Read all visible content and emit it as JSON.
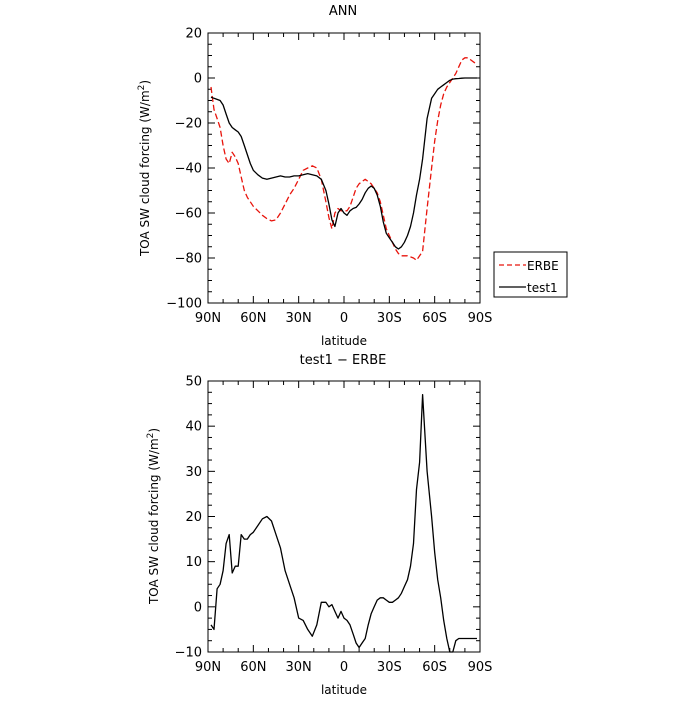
{
  "chart_data": [
    {
      "type": "line",
      "title": "ANN",
      "xlabel": "latitude",
      "ylabel": "TOA SW cloud forcing (W/m",
      "ylabel_sup": "2",
      "ylabel_end": ")",
      "xlim": [
        90,
        -90
      ],
      "ylim": [
        -100,
        20
      ],
      "xticks": [
        90,
        60,
        30,
        0,
        -30,
        -60,
        -90
      ],
      "xtick_labels": [
        "90N",
        "60N",
        "30N",
        "0",
        "30S",
        "60S",
        "90S"
      ],
      "yticks": [
        -100,
        -80,
        -60,
        -40,
        -20,
        0,
        20
      ],
      "ytick_labels": [
        "−100",
        "−80",
        "−60",
        "−40",
        "−20",
        "0",
        "20"
      ],
      "legend": "outside-right",
      "series": [
        {
          "name": "ERBE",
          "color": "#e8140c",
          "dash": "dashed",
          "x": [
            88,
            86,
            84,
            82,
            80,
            78,
            76,
            74,
            72,
            70,
            68,
            66,
            64,
            62,
            60,
            57,
            54,
            51,
            48,
            45,
            42,
            39,
            36,
            33,
            30,
            27,
            24,
            21,
            18,
            15,
            12,
            10,
            8,
            6,
            4,
            2,
            0,
            -2,
            -4,
            -6,
            -8,
            -10,
            -12,
            -14,
            -16,
            -18,
            -20,
            -22,
            -24,
            -26,
            -28,
            -30,
            -32,
            -34,
            -36,
            -38,
            -40,
            -42,
            -44,
            -46,
            -48,
            -50,
            -52,
            -55,
            -58,
            -60,
            -62,
            -64,
            -66,
            -68,
            -70,
            -72,
            -74,
            -76,
            -78,
            -80,
            -82,
            -84,
            -86,
            -88
          ],
          "y": [
            -4,
            -14,
            -18,
            -22,
            -30,
            -36,
            -38,
            -33,
            -35,
            -38,
            -44,
            -50,
            -53,
            -55,
            -57,
            -59,
            -61,
            -62.5,
            -63.5,
            -63,
            -60,
            -56,
            -52,
            -49,
            -45,
            -41,
            -40,
            -39,
            -40,
            -45,
            -55,
            -62,
            -67,
            -60,
            -58,
            -59,
            -59,
            -59,
            -57,
            -53,
            -49,
            -47,
            -46,
            -45,
            -46,
            -47,
            -49,
            -51,
            -55,
            -61,
            -67,
            -70,
            -73,
            -76,
            -78,
            -79,
            -79,
            -79,
            -79.5,
            -80,
            -81,
            -79,
            -77,
            -58,
            -40,
            -28,
            -19,
            -12,
            -7,
            -4,
            -2,
            0,
            2,
            5,
            8,
            9,
            9,
            8,
            7,
            6
          ]
        },
        {
          "name": "test1",
          "color": "#000000",
          "dash": "solid",
          "x": [
            88,
            86,
            84,
            82,
            80,
            78,
            76,
            74,
            72,
            70,
            68,
            66,
            64,
            62,
            60,
            57,
            54,
            51,
            48,
            45,
            42,
            39,
            36,
            33,
            30,
            27,
            24,
            21,
            18,
            15,
            12,
            10,
            8,
            6,
            4,
            2,
            0,
            -2,
            -4,
            -6,
            -8,
            -10,
            -12,
            -14,
            -16,
            -18,
            -20,
            -22,
            -24,
            -26,
            -28,
            -30,
            -32,
            -34,
            -36,
            -38,
            -40,
            -42,
            -44,
            -46,
            -48,
            -50,
            -52,
            -55,
            -58,
            -60,
            -62,
            -64,
            -66,
            -68,
            -70,
            -72,
            -74,
            -76,
            -78,
            -80,
            -82,
            -84,
            -86,
            -88
          ],
          "y": [
            -8.5,
            -9,
            -9.5,
            -10,
            -12,
            -16,
            -20,
            -22,
            -23,
            -24,
            -26,
            -30,
            -34,
            -38,
            -41,
            -43,
            -44.5,
            -45,
            -44.5,
            -44,
            -43.5,
            -44,
            -44,
            -43.5,
            -43.5,
            -43,
            -42.5,
            -43,
            -43.5,
            -45,
            -50,
            -56,
            -63,
            -66,
            -60,
            -58,
            -60,
            -61,
            -59,
            -58,
            -57.5,
            -56,
            -54,
            -51,
            -49,
            -48,
            -49,
            -52,
            -57,
            -64,
            -69,
            -71,
            -73,
            -75,
            -76,
            -75,
            -73,
            -70,
            -66,
            -60,
            -52,
            -45,
            -36,
            -18,
            -9,
            -7,
            -5,
            -4,
            -3,
            -2,
            -1,
            -0.5,
            -0.3,
            -0.2,
            -0.1,
            0,
            0,
            0,
            0,
            0
          ]
        }
      ]
    },
    {
      "type": "line",
      "title": "test1 − ERBE",
      "xlabel": "latitude",
      "ylabel": "TOA SW cloud forcing (W/m",
      "ylabel_sup": "2",
      "ylabel_end": ")",
      "xlim": [
        90,
        -90
      ],
      "ylim": [
        -10,
        50
      ],
      "xticks": [
        90,
        60,
        30,
        0,
        -30,
        -60,
        -90
      ],
      "xtick_labels": [
        "90N",
        "60N",
        "30N",
        "0",
        "30S",
        "60S",
        "90S"
      ],
      "yticks": [
        -10,
        0,
        10,
        20,
        30,
        40,
        50
      ],
      "ytick_labels": [
        "−10",
        "0",
        "10",
        "20",
        "30",
        "40",
        "50"
      ],
      "series": [
        {
          "color": "#000000",
          "dash": "solid",
          "x": [
            88,
            86,
            84,
            82,
            80,
            78,
            76,
            74,
            72,
            70,
            68,
            66,
            64,
            62,
            60,
            57,
            54,
            51,
            48,
            45,
            42,
            39,
            36,
            33,
            30,
            27,
            24,
            21,
            18,
            15,
            12,
            10,
            8,
            6,
            4,
            2,
            0,
            -2,
            -4,
            -6,
            -8,
            -10,
            -12,
            -14,
            -16,
            -18,
            -20,
            -22,
            -24,
            -26,
            -28,
            -30,
            -32,
            -34,
            -36,
            -38,
            -40,
            -42,
            -44,
            -46,
            -48,
            -50,
            -52,
            -55,
            -58,
            -60,
            -62,
            -64,
            -66,
            -68,
            -70,
            -72,
            -74,
            -76,
            -78,
            -80,
            -82,
            -84,
            -86,
            -88
          ],
          "y": [
            -4,
            -5,
            4,
            5,
            8,
            14,
            16,
            7.5,
            9,
            9,
            16,
            15,
            15,
            16,
            16.5,
            18,
            19.5,
            20,
            19,
            16,
            13,
            8,
            5,
            2,
            -2.5,
            -3,
            -5,
            -6.5,
            -4,
            1,
            1,
            0,
            0.5,
            -1,
            -2.5,
            -1,
            -2.5,
            -3,
            -4,
            -6,
            -8,
            -9,
            -8,
            -7,
            -4,
            -1.5,
            0,
            1.5,
            2,
            2,
            1.5,
            1,
            1,
            1.5,
            2,
            3,
            4.5,
            6,
            9,
            14,
            26,
            32,
            47,
            30,
            20,
            12,
            6,
            2,
            -3,
            -7,
            -10,
            -10,
            -7.5,
            -7,
            -7,
            -7,
            -7,
            -7,
            -7,
            -7
          ]
        }
      ]
    }
  ]
}
